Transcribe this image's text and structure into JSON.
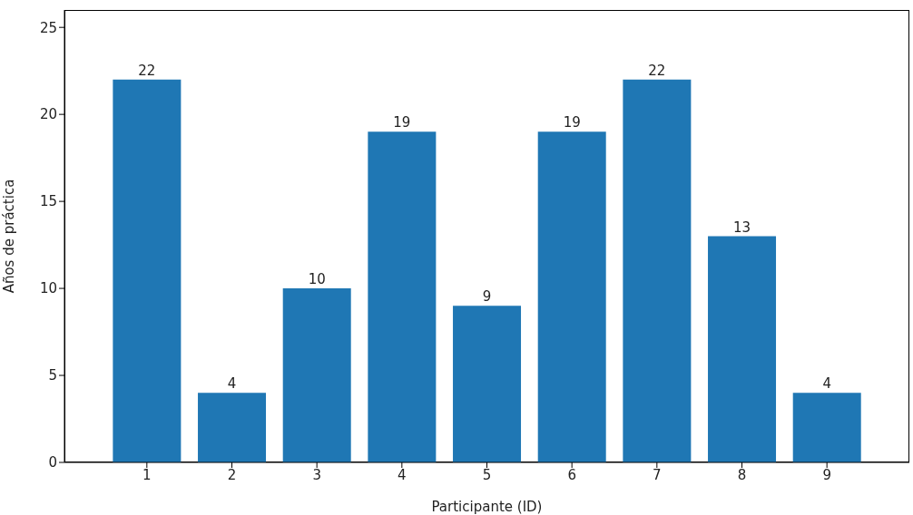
{
  "chart_data": {
    "type": "bar",
    "xlabel": "Participante (ID)",
    "ylabel": "Años de práctica",
    "categories": [
      "1",
      "2",
      "3",
      "4",
      "5",
      "6",
      "7",
      "8",
      "9"
    ],
    "values": [
      22,
      4,
      10,
      19,
      9,
      19,
      22,
      13,
      4
    ],
    "color": "#1f77b4",
    "ylim": [
      0,
      26
    ],
    "yticks": [
      0,
      5,
      10,
      15,
      20,
      25
    ],
    "grid": false,
    "data_labels": true
  }
}
